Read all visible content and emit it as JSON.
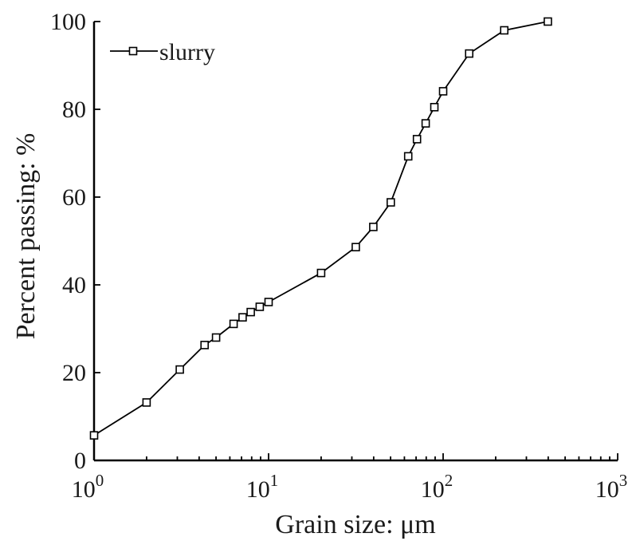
{
  "chart_data": {
    "type": "line",
    "xlabel": "Grain size: μm",
    "ylabel": "Percent passing: %",
    "x_scale": "log",
    "xlim": [
      1,
      1000
    ],
    "ylim": [
      0,
      100
    ],
    "x_ticks": [
      1,
      10,
      100,
      1000
    ],
    "x_tick_labels": [
      {
        "base": "10",
        "exp": "0"
      },
      {
        "base": "10",
        "exp": "1"
      },
      {
        "base": "10",
        "exp": "2"
      },
      {
        "base": "10",
        "exp": "3"
      }
    ],
    "y_ticks": [
      0,
      20,
      40,
      60,
      80,
      100
    ],
    "y_tick_labels": [
      "0",
      "20",
      "40",
      "60",
      "80",
      "100"
    ],
    "grid": false,
    "legend_position": "top-left",
    "series": [
      {
        "name": "slurry",
        "marker": "square",
        "color": "#000000",
        "x": [
          1.0,
          2.0,
          3.1,
          4.3,
          5.0,
          6.3,
          7.1,
          7.9,
          8.9,
          10.0,
          20.0,
          31.6,
          39.8,
          50.1,
          63.1,
          70.8,
          79.4,
          89.1,
          100.0,
          141.0,
          224.0,
          398.0
        ],
        "y": [
          5.7,
          13.2,
          20.7,
          26.3,
          28.0,
          31.1,
          32.6,
          33.8,
          35.0,
          36.1,
          42.7,
          48.6,
          53.2,
          58.8,
          69.3,
          73.2,
          76.8,
          80.5,
          84.1,
          92.7,
          98.0,
          100.0
        ]
      }
    ]
  }
}
